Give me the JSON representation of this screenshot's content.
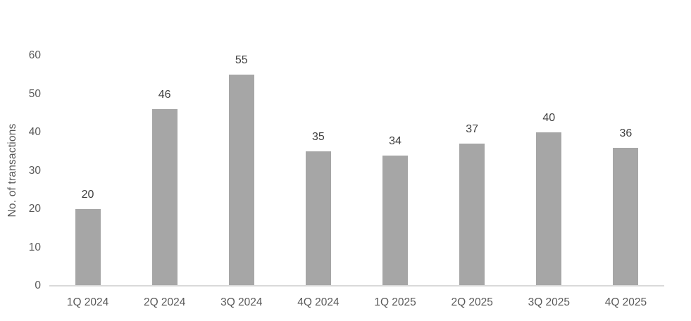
{
  "chart_data": {
    "type": "bar",
    "title": "",
    "xlabel": "",
    "ylabel": "No. of transactions",
    "categories": [
      "1Q 2024",
      "2Q 2024",
      "3Q 2024",
      "4Q 2024",
      "1Q 2025",
      "2Q 2025",
      "3Q 2025",
      "4Q 2025"
    ],
    "values": [
      20,
      46,
      55,
      35,
      34,
      37,
      40,
      36
    ],
    "ylim": [
      0,
      60
    ],
    "yticks": [
      0,
      10,
      20,
      30,
      40,
      50,
      60
    ],
    "grid": false,
    "legend": false,
    "data_labels": true,
    "colors": {
      "bar": "#a6a6a6",
      "axis_line": "#d9d9d9",
      "tick_text": "#595959",
      "data_label_text": "#404040",
      "background": "#ffffff"
    }
  }
}
